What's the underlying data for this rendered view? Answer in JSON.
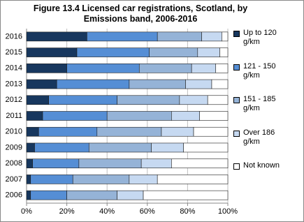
{
  "chart_data": {
    "type": "stacked-bar-horizontal",
    "title": "Figure 13.4 Licensed car registrations, Scotland, by Emissions band, 2006-2016",
    "categories": [
      "2016",
      "2015",
      "2014",
      "2013",
      "2012",
      "2011",
      "2010",
      "2009",
      "2008",
      "2007",
      "2006"
    ],
    "series": [
      {
        "name": "Up to 120 g/km",
        "color": "#17375e",
        "values": [
          30,
          25,
          20,
          15,
          11,
          8,
          6,
          4,
          3,
          2,
          2
        ]
      },
      {
        "name": "121 - 150 g/km",
        "color": "#558ed5",
        "values": [
          35,
          36,
          36,
          36,
          34,
          32,
          29,
          27,
          23,
          21,
          18
        ]
      },
      {
        "name": "151 - 185 g/km",
        "color": "#95b3d7",
        "values": [
          22,
          24,
          26,
          28,
          31,
          32,
          32,
          31,
          31,
          28,
          25
        ]
      },
      {
        "name": "Over 186 g/km",
        "color": "#c6d9f1",
        "values": [
          10,
          11,
          12,
          13,
          14,
          14,
          16,
          16,
          15,
          14,
          13
        ]
      },
      {
        "name": "Not known",
        "color": "#ffffff",
        "values": [
          3,
          4,
          6,
          8,
          10,
          14,
          17,
          22,
          28,
          35,
          42
        ]
      }
    ],
    "xlim": [
      0,
      100
    ],
    "xticks": [
      {
        "value": 0,
        "label": "0%"
      },
      {
        "value": 20,
        "label": "20%"
      },
      {
        "value": 40,
        "label": "40%"
      },
      {
        "value": 60,
        "label": "60%"
      },
      {
        "value": 80,
        "label": "80%"
      },
      {
        "value": 100,
        "label": "100%"
      }
    ],
    "grid": true,
    "legend": "right"
  }
}
